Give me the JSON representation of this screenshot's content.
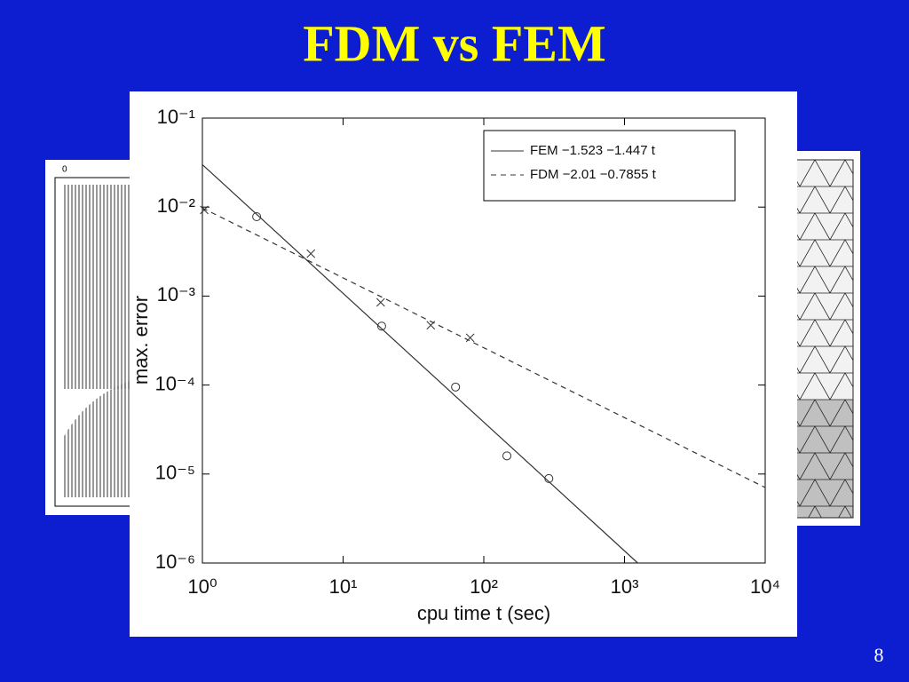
{
  "slide": {
    "title": "FDM vs FEM",
    "page_number": "8",
    "left_figure_label": "0"
  },
  "chart_data": {
    "type": "line",
    "xlabel": "cpu time t (sec)",
    "ylabel": "max. error",
    "xscale": "log",
    "yscale": "log",
    "xlim": [
      1,
      10000
    ],
    "ylim": [
      1e-06,
      0.1
    ],
    "xticks": [
      {
        "value": 1,
        "label": "10⁰"
      },
      {
        "value": 10,
        "label": "10¹"
      },
      {
        "value": 100,
        "label": "10²"
      },
      {
        "value": 1000,
        "label": "10³"
      },
      {
        "value": 10000,
        "label": "10⁴"
      }
    ],
    "yticks": [
      {
        "value": 1e-06,
        "label": "10⁻⁶"
      },
      {
        "value": 1e-05,
        "label": "10⁻⁵"
      },
      {
        "value": 0.0001,
        "label": "10⁻⁴"
      },
      {
        "value": 0.001,
        "label": "10⁻³"
      },
      {
        "value": 0.01,
        "label": "10⁻²"
      },
      {
        "value": 0.1,
        "label": "10⁻¹"
      }
    ],
    "legend": "upper right",
    "series": [
      {
        "name": "FEM −1.523 −1.447 t",
        "color": "#333333",
        "dash": false,
        "x": [
          1,
          1242
        ],
        "values": [
          0.03,
          1e-06
        ]
      },
      {
        "name": "FDM  −2.01 −0.7855 t",
        "color": "#333333",
        "dash": true,
        "x": [
          1,
          10000
        ],
        "values": [
          0.00977,
          7.05e-06
        ]
      }
    ],
    "points": [
      {
        "marker": "o",
        "color": "#333333",
        "x": [
          2.43,
          18.8,
          63,
          146,
          290
        ],
        "values": [
          0.0078,
          0.00046,
          9.5e-05,
          1.6e-05,
          8.9e-06
        ]
      },
      {
        "marker": "x",
        "color": "#333333",
        "x": [
          1.03,
          5.9,
          18.5,
          42,
          80
        ],
        "values": [
          0.0093,
          0.003,
          0.00085,
          0.00047,
          0.00034
        ]
      }
    ]
  }
}
